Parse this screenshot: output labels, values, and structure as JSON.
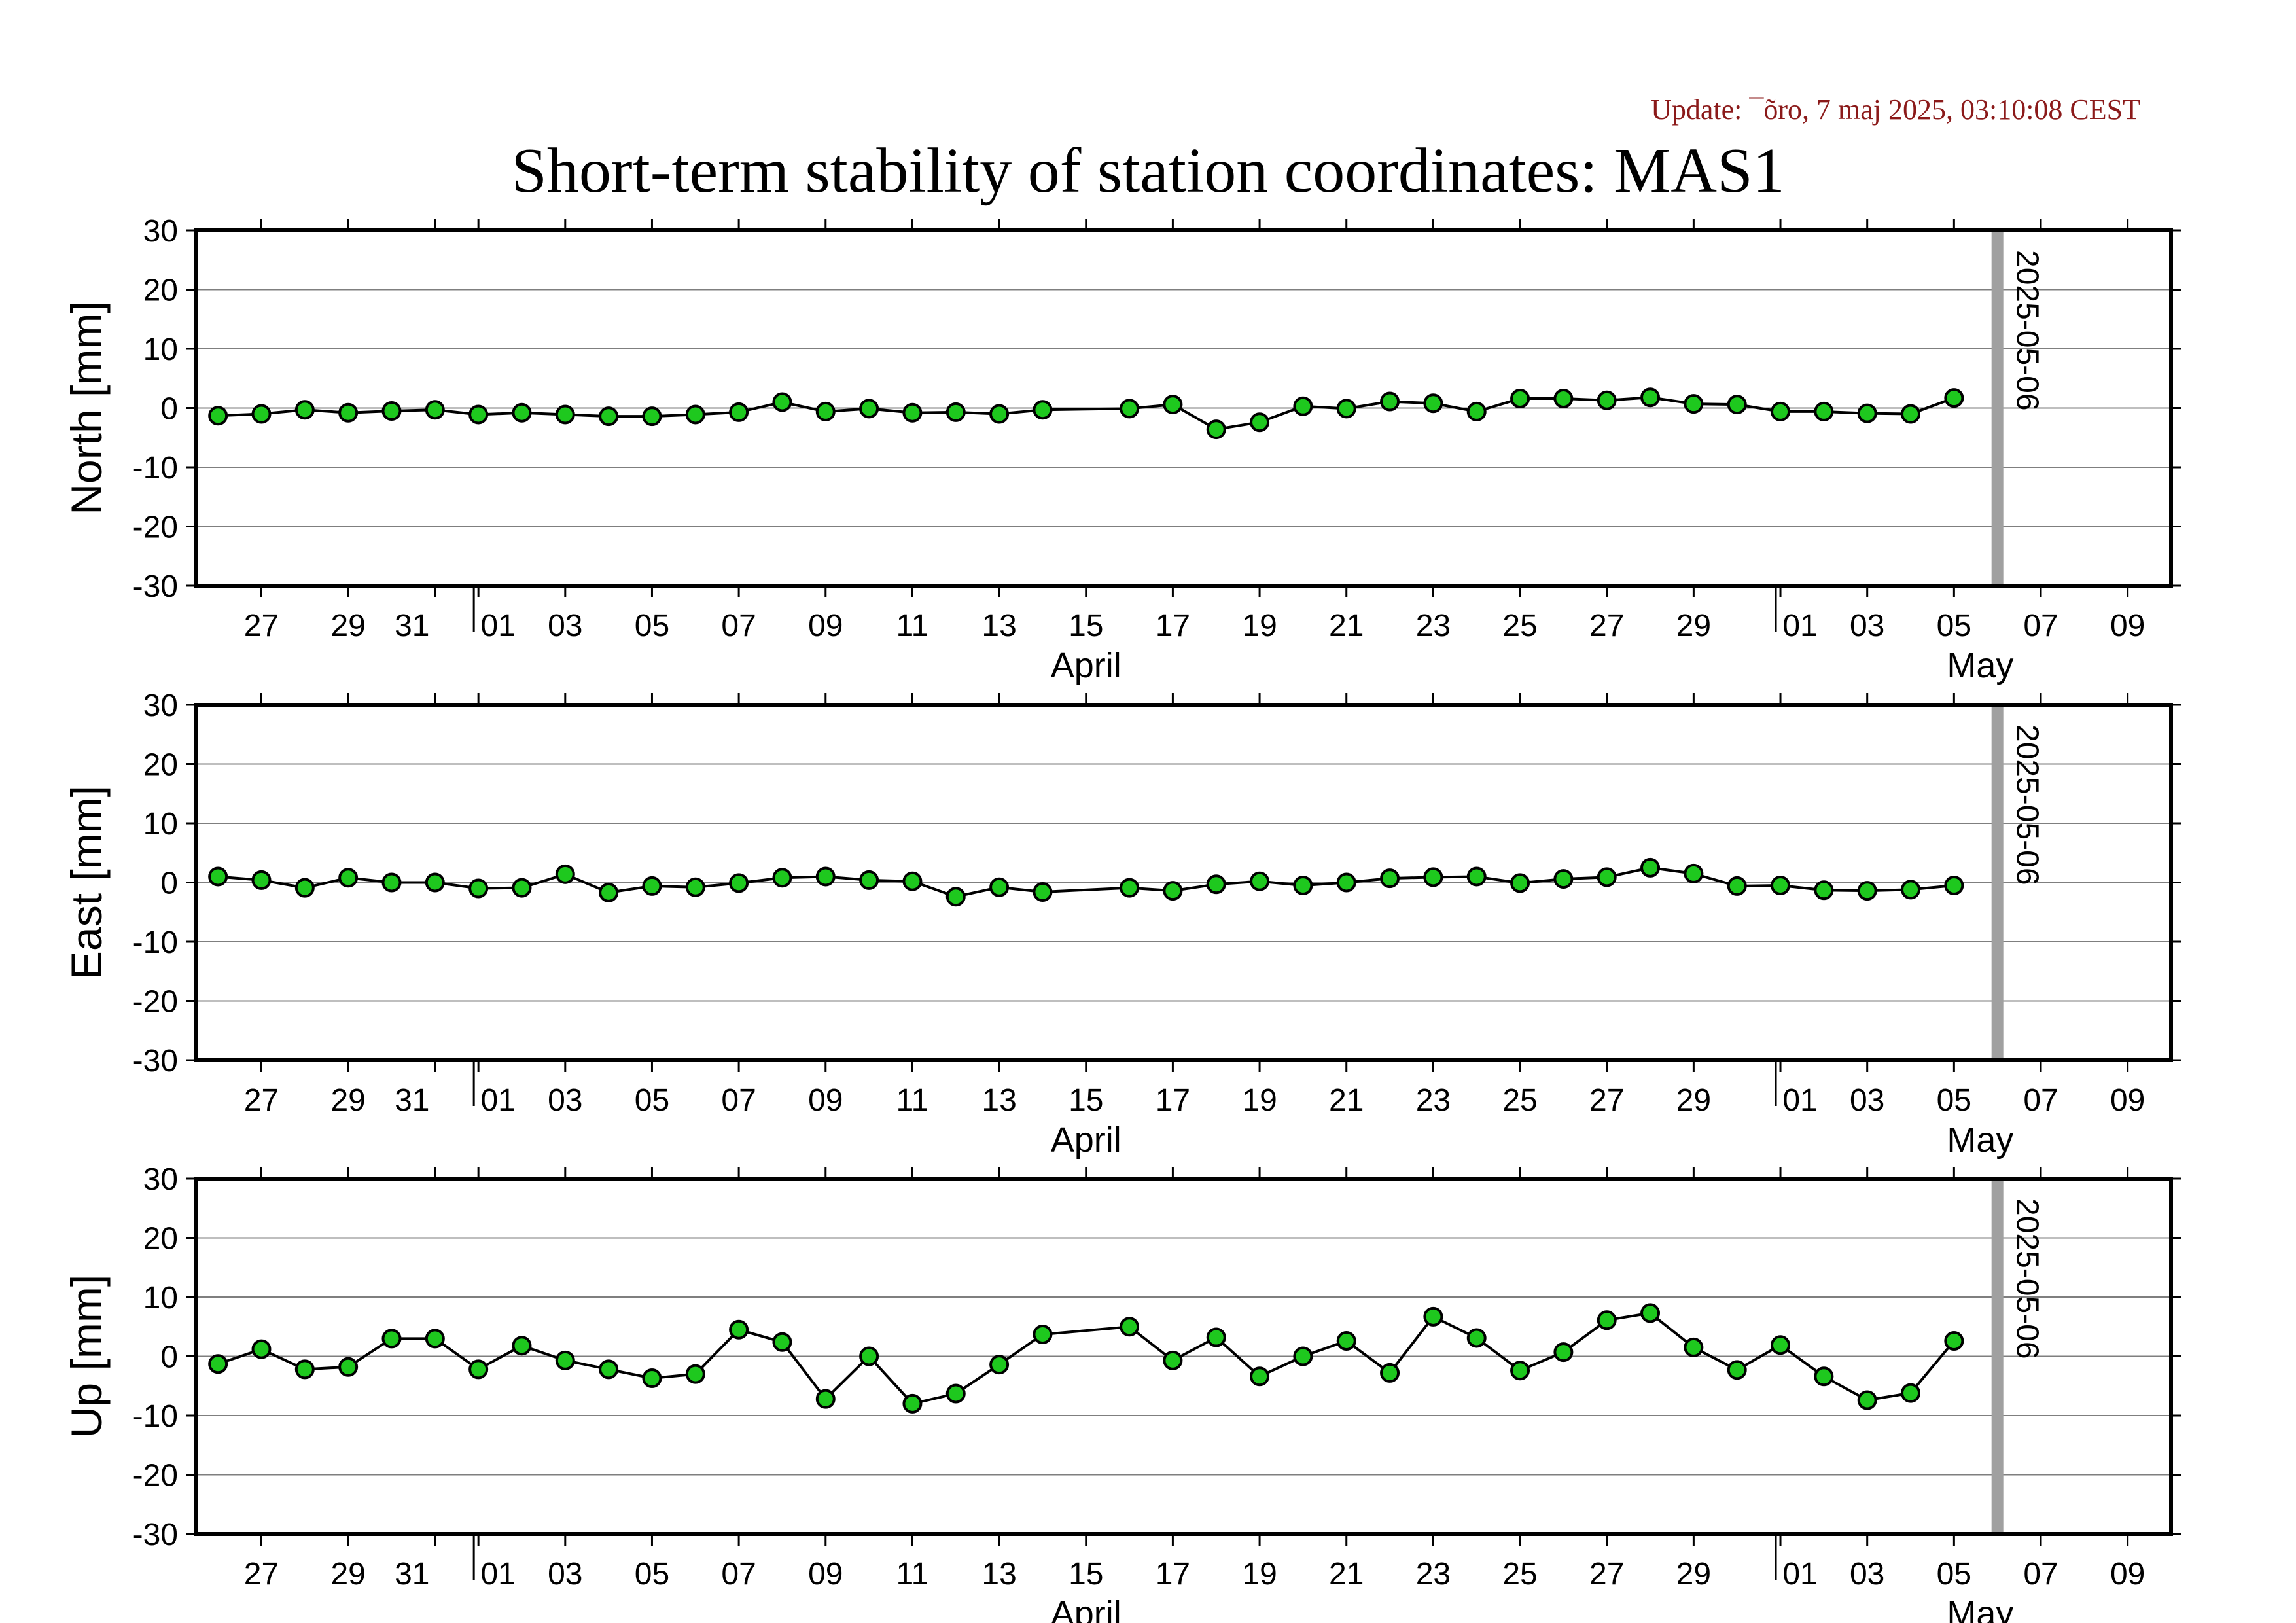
{
  "header": {
    "update": "Update: ¯õro, 7 maj 2025, 03:10:08 CEST",
    "title": "Short-term stability of station coordinates: MAS1"
  },
  "chart_data": [
    {
      "type": "line",
      "ylabel": "North [mm]",
      "ylim": [
        -30,
        30
      ],
      "yticks": [
        -30,
        -20,
        -10,
        0,
        10,
        20,
        30
      ],
      "xlim": [
        "2025-03-25T12:00",
        "2025-05-10T00:00"
      ],
      "xticks": [
        "27",
        "29",
        "31",
        "01",
        "03",
        "05",
        "07",
        "09",
        "11",
        "13",
        "15",
        "17",
        "19",
        "21",
        "23",
        "25",
        "27",
        "29",
        "01",
        "03",
        "05",
        "07",
        "09"
      ],
      "month_labels": [
        "April",
        "May"
      ],
      "marker_line": "2025-05-06",
      "grid": true,
      "series": [
        {
          "x": [
            "2025-03-26",
            "2025-03-27",
            "2025-03-28",
            "2025-03-29",
            "2025-03-30",
            "2025-03-31",
            "2025-04-01",
            "2025-04-02",
            "2025-04-03",
            "2025-04-04",
            "2025-04-05",
            "2025-04-06",
            "2025-04-07",
            "2025-04-08",
            "2025-04-09",
            "2025-04-10",
            "2025-04-11",
            "2025-04-12",
            "2025-04-13",
            "2025-04-14",
            "2025-04-16",
            "2025-04-17",
            "2025-04-18",
            "2025-04-19",
            "2025-04-20",
            "2025-04-21",
            "2025-04-22",
            "2025-04-23",
            "2025-04-24",
            "2025-04-25",
            "2025-04-26",
            "2025-04-27",
            "2025-04-28",
            "2025-04-29",
            "2025-04-30",
            "2025-05-01",
            "2025-05-02",
            "2025-05-03",
            "2025-05-04",
            "2025-05-05"
          ],
          "values": [
            -1.3,
            -1.0,
            -0.3,
            -0.8,
            -0.5,
            -0.3,
            -1.1,
            -0.8,
            -1.1,
            -1.4,
            -1.4,
            -1.1,
            -0.7,
            1.0,
            -0.6,
            -0.1,
            -0.8,
            -0.7,
            -1.0,
            -0.3,
            -0.1,
            0.6,
            -3.6,
            -2.4,
            0.3,
            -0.1,
            1.1,
            0.8,
            -0.6,
            1.6,
            1.6,
            1.3,
            1.8,
            0.7,
            0.6,
            -0.6,
            -0.6,
            -0.9,
            -1.0,
            1.7
          ]
        }
      ]
    },
    {
      "type": "line",
      "ylabel": "East [mm]",
      "ylim": [
        -30,
        30
      ],
      "yticks": [
        -30,
        -20,
        -10,
        0,
        10,
        20,
        30
      ],
      "xlim": [
        "2025-03-25T12:00",
        "2025-05-10T00:00"
      ],
      "xticks": [
        "27",
        "29",
        "31",
        "01",
        "03",
        "05",
        "07",
        "09",
        "11",
        "13",
        "15",
        "17",
        "19",
        "21",
        "23",
        "25",
        "27",
        "29",
        "01",
        "03",
        "05",
        "07",
        "09"
      ],
      "month_labels": [
        "April",
        "May"
      ],
      "marker_line": "2025-05-06",
      "grid": true,
      "series": [
        {
          "x": [
            "2025-03-26",
            "2025-03-27",
            "2025-03-28",
            "2025-03-29",
            "2025-03-30",
            "2025-03-31",
            "2025-04-01",
            "2025-04-02",
            "2025-04-03",
            "2025-04-04",
            "2025-04-05",
            "2025-04-06",
            "2025-04-07",
            "2025-04-08",
            "2025-04-09",
            "2025-04-10",
            "2025-04-11",
            "2025-04-12",
            "2025-04-13",
            "2025-04-14",
            "2025-04-16",
            "2025-04-17",
            "2025-04-18",
            "2025-04-19",
            "2025-04-20",
            "2025-04-21",
            "2025-04-22",
            "2025-04-23",
            "2025-04-24",
            "2025-04-25",
            "2025-04-26",
            "2025-04-27",
            "2025-04-28",
            "2025-04-29",
            "2025-04-30",
            "2025-05-01",
            "2025-05-02",
            "2025-05-03",
            "2025-05-04",
            "2025-05-05"
          ],
          "values": [
            1.0,
            0.4,
            -0.9,
            0.8,
            0.0,
            0.0,
            -1.0,
            -0.9,
            1.4,
            -1.7,
            -0.6,
            -0.8,
            -0.1,
            0.8,
            1.0,
            0.4,
            0.2,
            -2.4,
            -0.8,
            -1.6,
            -0.9,
            -1.4,
            -0.3,
            0.2,
            -0.5,
            0.0,
            0.7,
            0.9,
            1.0,
            -0.1,
            0.6,
            0.9,
            2.5,
            1.5,
            -0.6,
            -0.5,
            -1.3,
            -1.4,
            -1.2,
            -0.5
          ]
        }
      ]
    },
    {
      "type": "line",
      "ylabel": "Up [mm]",
      "ylim": [
        -30,
        30
      ],
      "yticks": [
        -30,
        -20,
        -10,
        0,
        10,
        20,
        30
      ],
      "xlim": [
        "2025-03-25T12:00",
        "2025-05-10T00:00"
      ],
      "xticks": [
        "27",
        "29",
        "31",
        "01",
        "03",
        "05",
        "07",
        "09",
        "11",
        "13",
        "15",
        "17",
        "19",
        "21",
        "23",
        "25",
        "27",
        "29",
        "01",
        "03",
        "05",
        "07",
        "09"
      ],
      "month_labels": [
        "April",
        "May"
      ],
      "marker_line": "2025-05-06",
      "grid": true,
      "series": [
        {
          "x": [
            "2025-03-26",
            "2025-03-27",
            "2025-03-28",
            "2025-03-29",
            "2025-03-30",
            "2025-03-31",
            "2025-04-01",
            "2025-04-02",
            "2025-04-03",
            "2025-04-04",
            "2025-04-05",
            "2025-04-06",
            "2025-04-07",
            "2025-04-08",
            "2025-04-09",
            "2025-04-10",
            "2025-04-11",
            "2025-04-12",
            "2025-04-13",
            "2025-04-14",
            "2025-04-16",
            "2025-04-17",
            "2025-04-18",
            "2025-04-19",
            "2025-04-20",
            "2025-04-21",
            "2025-04-22",
            "2025-04-23",
            "2025-04-24",
            "2025-04-25",
            "2025-04-26",
            "2025-04-27",
            "2025-04-28",
            "2025-04-29",
            "2025-04-30",
            "2025-05-01",
            "2025-05-02",
            "2025-05-03",
            "2025-05-04",
            "2025-05-05"
          ],
          "values": [
            -1.3,
            1.2,
            -2.2,
            -1.8,
            3.0,
            3.0,
            -2.2,
            1.8,
            -0.7,
            -2.2,
            -3.7,
            -3.0,
            4.5,
            2.4,
            -7.2,
            0.0,
            -8.0,
            -6.3,
            -1.4,
            3.7,
            5.0,
            -0.7,
            3.2,
            -3.4,
            0.0,
            2.6,
            -2.8,
            6.7,
            3.1,
            -2.4,
            0.7,
            6.1,
            7.3,
            1.5,
            -2.3,
            1.9,
            -3.4,
            -7.4,
            -6.2,
            2.6
          ]
        }
      ]
    }
  ],
  "colors": {
    "marker_fill": "#1ec81e",
    "marker_stroke": "#000000",
    "grid": "#7f7f7f",
    "marker_line": "#a0a0a0",
    "update_text": "#8b1a1a"
  }
}
